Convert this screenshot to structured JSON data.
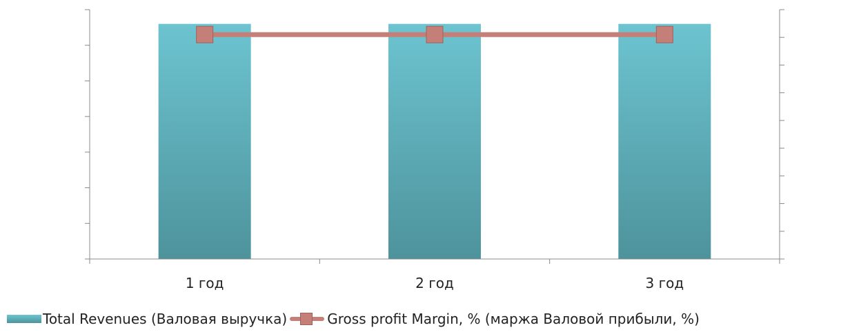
{
  "chart_data": {
    "type": "bar",
    "categories": [
      "1 год",
      "2 год",
      "3 год"
    ],
    "series": [
      {
        "name": "Total Revenues (Валовая выручка)",
        "kind": "bar",
        "axis": "left",
        "values": [
          6.6,
          6.6,
          6.6
        ],
        "color": "#5ab0bc"
      },
      {
        "name": "Gross profit Margin, % (маржа Валовой прибыли, %)",
        "kind": "line",
        "axis": "right",
        "values": [
          8.1,
          8.1,
          8.1
        ],
        "color": "#c47f78"
      }
    ],
    "ylim_left": [
      0,
      7
    ],
    "ylim_right": [
      0,
      9
    ],
    "y_tick_labels_shown": false,
    "grid": false,
    "legend_position": "bottom",
    "title": "",
    "xlabel": "",
    "ylabel": ""
  }
}
